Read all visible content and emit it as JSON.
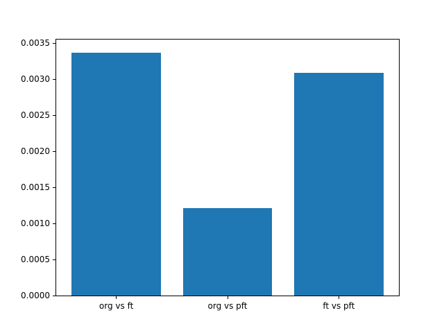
{
  "chart_data": {
    "type": "bar",
    "title": "",
    "xlabel": "",
    "ylabel": "",
    "categories": [
      "org vs ft",
      "org vs pft",
      "ft vs pft"
    ],
    "values": [
      0.00337,
      0.00121,
      0.00309
    ],
    "ylim": [
      0,
      0.00355
    ],
    "yticks": [
      0.0,
      0.0005,
      0.001,
      0.0015,
      0.002,
      0.0025,
      0.003,
      0.0035
    ],
    "ytick_labels": [
      "0.0000",
      "0.0005",
      "0.0010",
      "0.0015",
      "0.0020",
      "0.0025",
      "0.0030",
      "0.0035"
    ],
    "bar_color": "#1f77b4",
    "bar_width_fraction": 0.8,
    "x_margin_fraction": 0.54,
    "grid": false,
    "legend_position": "none",
    "background_color": "#ffffff",
    "spine_color": "#000000"
  }
}
